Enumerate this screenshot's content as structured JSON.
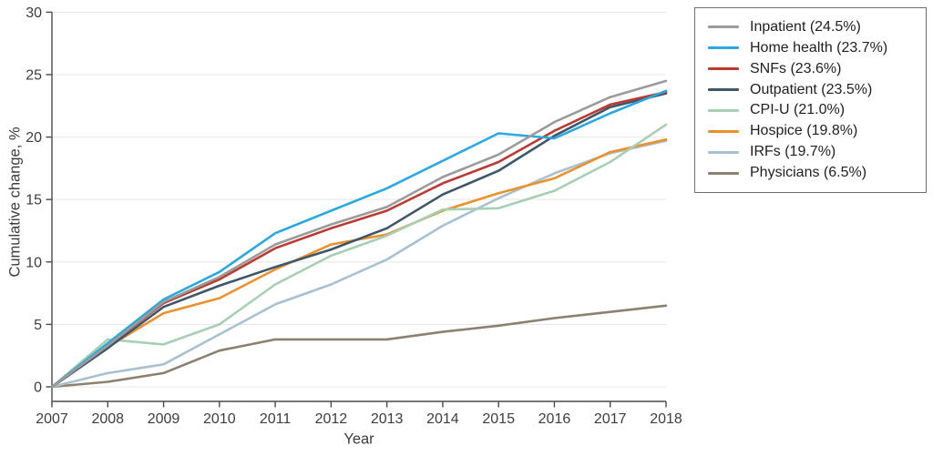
{
  "figure": {
    "ylabel": "Cumulative change, %",
    "xlabel": "Year"
  },
  "colors": {
    "axis": "#4a4a4a",
    "tick_text": "#3d3d3d",
    "gridline": "#e9e9e9",
    "legend_border": "#6f6f6f",
    "background": "#ffffff"
  },
  "chart_data": {
    "type": "line",
    "title": "",
    "xlabel": "Year",
    "ylabel": "Cumulative change, %",
    "ylim": [
      0,
      30
    ],
    "yticks": [
      0,
      5,
      10,
      15,
      20,
      25,
      30
    ],
    "grid": true,
    "legend_position": "outside-right-top",
    "x": [
      2007,
      2008,
      2009,
      2010,
      2011,
      2012,
      2013,
      2014,
      2015,
      2016,
      2017,
      2018
    ],
    "series": [
      {
        "name": "Inpatient",
        "legend_label": "Inpatient (24.5%)",
        "final_value": 24.5,
        "color": "#9b9b9b",
        "values": [
          0,
          3.3,
          6.8,
          8.8,
          11.4,
          13.0,
          14.4,
          16.8,
          18.6,
          21.2,
          23.2,
          24.5
        ]
      },
      {
        "name": "Home health",
        "legend_label": "Home health (23.7%)",
        "final_value": 23.7,
        "color": "#29a9e1",
        "values": [
          0,
          3.5,
          7.0,
          9.2,
          12.3,
          14.1,
          15.9,
          18.1,
          20.3,
          19.9,
          21.9,
          23.7
        ]
      },
      {
        "name": "SNFs",
        "legend_label": "SNFs (23.6%)",
        "final_value": 23.6,
        "color": "#bb3a31",
        "values": [
          0,
          3.3,
          6.7,
          8.6,
          11.1,
          12.7,
          14.1,
          16.3,
          18.0,
          20.5,
          22.6,
          23.6
        ]
      },
      {
        "name": "Outpatient",
        "legend_label": "Outpatient (23.5%)",
        "final_value": 23.5,
        "color": "#3d5669",
        "values": [
          0,
          3.1,
          6.4,
          8.1,
          9.6,
          11.0,
          12.7,
          15.4,
          17.3,
          20.1,
          22.4,
          23.5
        ]
      },
      {
        "name": "CPI-U",
        "legend_label": "CPI-U (21.0%)",
        "final_value": 21.0,
        "color": "#a6cfb3",
        "values": [
          0,
          3.8,
          3.4,
          5.0,
          8.2,
          10.5,
          12.1,
          14.2,
          14.3,
          15.7,
          18.0,
          21.0
        ]
      },
      {
        "name": "Hospice",
        "legend_label": "Hospice (19.8%)",
        "final_value": 19.8,
        "color": "#e9912d",
        "values": [
          0,
          3.2,
          5.9,
          7.1,
          9.4,
          11.4,
          12.2,
          14.1,
          15.5,
          16.7,
          18.8,
          19.8
        ]
      },
      {
        "name": "IRFs",
        "legend_label": "IRFs (19.7%)",
        "final_value": 19.7,
        "color": "#a8c1d2",
        "values": [
          0,
          1.1,
          1.8,
          4.2,
          6.6,
          8.2,
          10.2,
          12.9,
          15.1,
          17.1,
          18.7,
          19.7
        ]
      },
      {
        "name": "Physicians",
        "legend_label": "Physicians (6.5%)",
        "final_value": 6.5,
        "color": "#8b8170",
        "values": [
          0,
          0.4,
          1.1,
          2.9,
          3.8,
          3.8,
          3.8,
          4.4,
          4.9,
          5.5,
          6.0,
          6.5
        ]
      }
    ]
  }
}
